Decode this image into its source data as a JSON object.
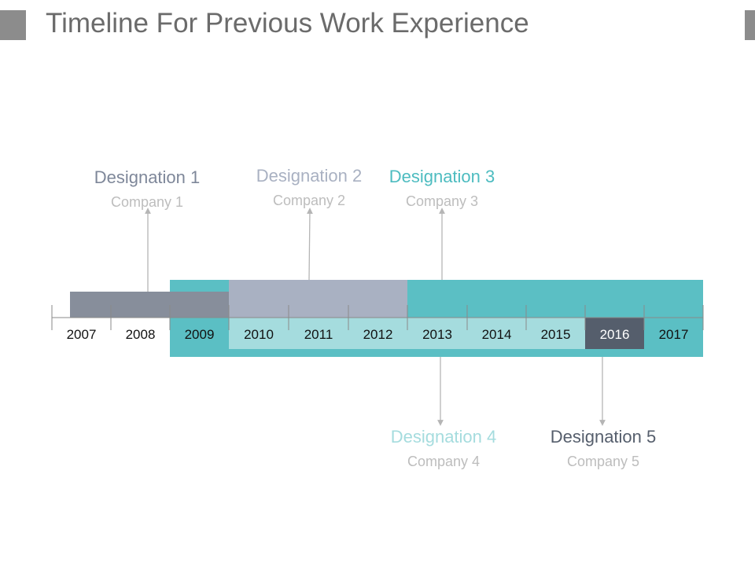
{
  "title": "Timeline For Previous Work Experience",
  "years": [
    "2007",
    "2008",
    "2009",
    "2010",
    "2011",
    "2012",
    "2013",
    "2014",
    "2015",
    "2016",
    "2017"
  ],
  "highlight_year": "2016",
  "colors": {
    "slate": "#878e9b",
    "lavender": "#a9b1c2",
    "teal": "#5bbfc4",
    "light_teal": "#a5dcde",
    "dark": "#555e6c"
  },
  "entries": [
    {
      "designation": "Designation 1",
      "company": "Company 1",
      "color": "#7e8799"
    },
    {
      "designation": "Designation 2",
      "company": "Company 2",
      "color": "#a9b1c2"
    },
    {
      "designation": "Designation 3",
      "company": "Company 3",
      "color": "#4dbcc0"
    },
    {
      "designation": "Designation 4",
      "company": "Company 4",
      "color": "#a5dcde"
    },
    {
      "designation": "Designation 5",
      "company": "Company 5",
      "color": "#555e6c"
    }
  ]
}
